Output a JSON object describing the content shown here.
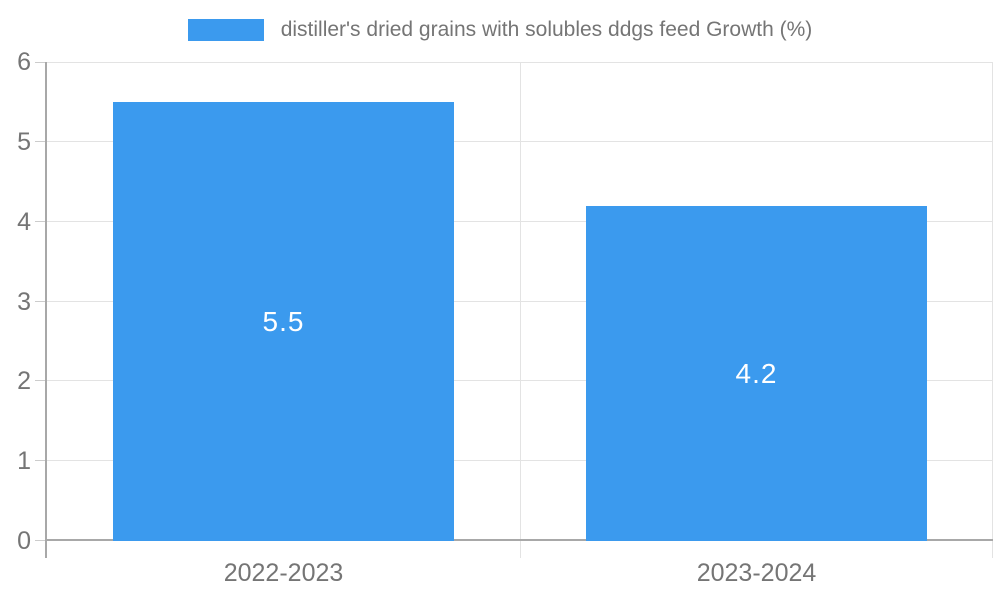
{
  "legend": {
    "label": "distiller's dried grains with solubles ddgs feed Growth (%)"
  },
  "chart_data": {
    "type": "bar",
    "title": "",
    "xlabel": "",
    "ylabel": "",
    "categories": [
      "2022-2023",
      "2023-2024"
    ],
    "series": [
      {
        "name": "distiller's dried grains with solubles ddgs feed Growth (%)",
        "values": [
          5.5,
          4.2
        ]
      }
    ],
    "value_labels": [
      "5.5",
      "4.2"
    ],
    "ylim": [
      0,
      6
    ],
    "yticks": [
      0,
      1,
      2,
      3,
      4,
      5,
      6
    ],
    "grid": true,
    "legend_position": "top",
    "bar_color": "#3b9aee",
    "value_label_color": "#ffffff",
    "axis_text_color": "#757575"
  }
}
